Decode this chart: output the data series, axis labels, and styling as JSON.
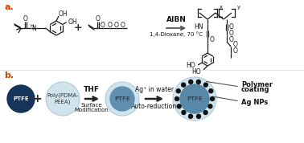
{
  "bg_color": "#ffffff",
  "label_a": "a.",
  "label_b": "b.",
  "label_color": "#cc4400",
  "label_fontsize": 8,
  "chem_color": "#1a1a1a",
  "lw": 0.9,
  "part_b": {
    "poly_circle_color": "#d0e4ee",
    "poly_circle_edge": "#b0ccd8",
    "ptfe_inner_color": "#7aaec8",
    "ptfe_inner_hi": "#a8ccdc",
    "ptfe_dark": "#1a3a6a",
    "ptfe_mid": "#2a5a9a",
    "ptfe_hi": "#5a9acc",
    "arrow_color": "#222222",
    "ag_np_color": "#1a1a1a",
    "annotation_fontsize": 6.0,
    "annotation_color": "#111111",
    "step1_top": "THF",
    "step1_bottom": "Surface\nModification",
    "step2_top": "Ag⁺ in water",
    "step2_bottom": "Auto-reduction"
  }
}
